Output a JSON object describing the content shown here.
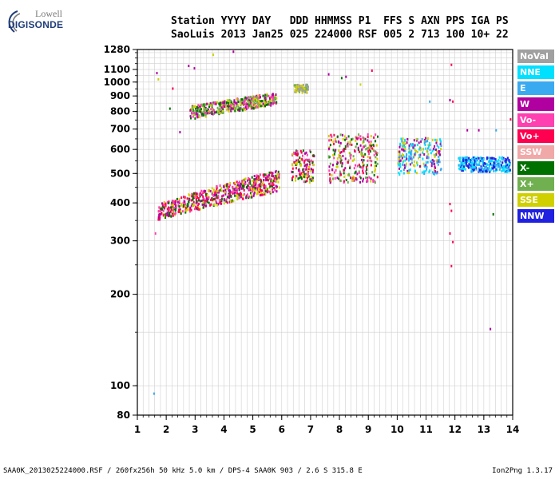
{
  "logo": {
    "top_text": "Lowell",
    "bottom_text": "DIGISONDE"
  },
  "header": {
    "line1": "Station YYYY DAY   DDD HHMMSS P1  FFS S AXN PPS IGA PS",
    "line2": "SaoLuis 2013 Jan25 025 224000 RSF 005 2 713 100 10+ 22"
  },
  "legend": [
    {
      "label": "NoVal",
      "color": "#a0a0a0"
    },
    {
      "label": "NNE",
      "color": "#00e0ff"
    },
    {
      "label": "E",
      "color": "#3aaaf0"
    },
    {
      "label": "W",
      "color": "#b000a0"
    },
    {
      "label": "Vo-",
      "color": "#ff40b0"
    },
    {
      "label": "Vo+",
      "color": "#ff0050"
    },
    {
      "label": "SSW",
      "color": "#f0a8a8"
    },
    {
      "label": "X-",
      "color": "#007000"
    },
    {
      "label": "X+",
      "color": "#70b050"
    },
    {
      "label": "SSE",
      "color": "#d0d000"
    },
    {
      "label": "NNW",
      "color": "#2020e0"
    }
  ],
  "footer": {
    "left": "SAA0K_2013025224000.RSF / 260fx256h 50 kHz 5.0 km / DPS-4 SAA0K 903 / 2.6 S 315.8 E",
    "right": "Ion2Png 1.3.17"
  },
  "chart_data": {
    "type": "scatter",
    "title": "",
    "xlabel": "",
    "ylabel": "",
    "xlim": [
      1,
      14
    ],
    "ylim": [
      80,
      1280
    ],
    "y_scale": "log",
    "x_ticks": [
      1,
      2,
      3,
      4,
      5,
      6,
      7,
      8,
      9,
      10,
      11,
      12,
      13,
      14
    ],
    "y_ticks": [
      80,
      100,
      200,
      300,
      400,
      500,
      600,
      700,
      800,
      900,
      1000,
      1100,
      1280
    ],
    "grid": true,
    "clusters": [
      {
        "name": "F-trace lower",
        "x_range": [
          1.7,
          5.9
        ],
        "y_start": [
          355,
          400
        ],
        "y_end": [
          440,
          520
        ],
        "colors": [
          "#ff0050",
          "#ff40b0",
          "#b000a0",
          "#d0d000",
          "#007000"
        ]
      },
      {
        "name": "F-trace upper",
        "x_range": [
          2.8,
          5.8
        ],
        "y_start": [
          760,
          840
        ],
        "y_end": [
          850,
          930
        ],
        "colors": [
          "#d0d000",
          "#007000",
          "#ff40b0",
          "#b000a0",
          "#70b050"
        ]
      },
      {
        "name": "Spread 6-7",
        "x_range": [
          6.3,
          7.1
        ],
        "y_start": [
          470,
          600
        ],
        "y_end": [
          470,
          600
        ],
        "colors": [
          "#ff0050",
          "#ff40b0",
          "#d0d000",
          "#b000a0",
          "#007000"
        ]
      },
      {
        "name": "Spread 7.6-9.3",
        "x_range": [
          7.6,
          9.3
        ],
        "y_start": [
          470,
          680
        ],
        "y_end": [
          470,
          680
        ],
        "colors": [
          "#ff0050",
          "#ff40b0",
          "#b000a0",
          "#d0d000",
          "#007000",
          "#70b050"
        ]
      },
      {
        "name": "Spread 10-11.5",
        "x_range": [
          10.0,
          11.5
        ],
        "y_start": [
          500,
          660
        ],
        "y_end": [
          500,
          660
        ],
        "colors": [
          "#b000a0",
          "#d0d000",
          "#00e0ff",
          "#3aaaf0"
        ]
      },
      {
        "name": "Spread 12-13.9",
        "x_range": [
          12.1,
          13.9
        ],
        "y_start": [
          510,
          570
        ],
        "y_end": [
          510,
          570
        ],
        "colors": [
          "#00e0ff",
          "#3aaaf0",
          "#2020e0"
        ]
      },
      {
        "name": "Echo 6.8",
        "x_range": [
          6.4,
          6.9
        ],
        "y_start": [
          930,
          990
        ],
        "y_end": [
          930,
          990
        ],
        "colors": [
          "#d0d000",
          "#70b050",
          "#a0a0a0"
        ]
      }
    ]
  }
}
